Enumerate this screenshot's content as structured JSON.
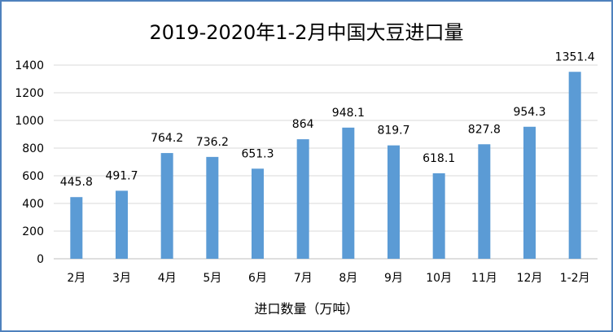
{
  "chart_data": {
    "type": "bar",
    "title": "2019-2020年1-2月中国大豆进口量",
    "xlabel": "进口数量（万吨）",
    "ylabel": "",
    "categories": [
      "2月",
      "3月",
      "4月",
      "5月",
      "6月",
      "7月",
      "8月",
      "9月",
      "10月",
      "11月",
      "12月",
      "1-2月"
    ],
    "values": [
      445.8,
      491.7,
      764.2,
      736.2,
      651.3,
      864,
      948.1,
      819.7,
      618.1,
      827.8,
      954.3,
      1351.4
    ],
    "value_labels": [
      "445.8",
      "491.7",
      "764.2",
      "736.2",
      "651.3",
      "864",
      "948.1",
      "819.7",
      "618.1",
      "827.8",
      "954.3",
      "1351.4"
    ],
    "ylim": [
      0,
      1400
    ],
    "yticks": [
      0,
      200,
      400,
      600,
      800,
      1000,
      1200,
      1400
    ],
    "ytick_labels": [
      "0",
      "200",
      "400",
      "600",
      "800",
      "1000",
      "1200",
      "1400"
    ],
    "grid": true,
    "legend": "none",
    "bar_color": "#5b9bd5",
    "grid_color": "#d9d9d9"
  }
}
